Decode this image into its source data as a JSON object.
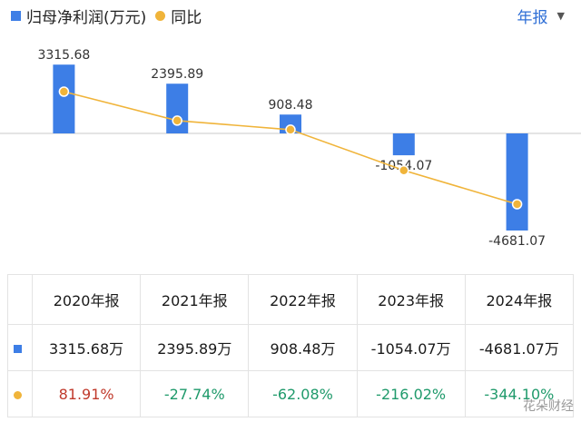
{
  "legend": {
    "profit": "归母净利润(万元)",
    "yoy": "同比"
  },
  "period_selector": {
    "label": "年报"
  },
  "colors": {
    "bar": "#3d7ee6",
    "line": "#f0b43a",
    "positive": "#c0392b",
    "negative": "#1f9a6b"
  },
  "chart_data": {
    "type": "bar",
    "categories": [
      "2020年报",
      "2021年报",
      "2022年报",
      "2023年报",
      "2024年报"
    ],
    "series": [
      {
        "name": "归母净利润(万元)",
        "type": "bar",
        "values": [
          3315.68,
          2395.89,
          908.48,
          -1054.07,
          -4681.07
        ],
        "data_labels": [
          "3315.68",
          "2395.89",
          "908.48",
          "-1054.07",
          "-4681.07"
        ]
      },
      {
        "name": "同比",
        "type": "line",
        "values": [
          81.91,
          -27.74,
          -62.08,
          -216.02,
          -344.1
        ]
      }
    ]
  },
  "table": {
    "headers": [
      "2020年报",
      "2021年报",
      "2022年报",
      "2023年报",
      "2024年报"
    ],
    "profit_row": [
      "3315.68万",
      "2395.89万",
      "908.48万",
      "-1054.07万",
      "-4681.07万"
    ],
    "yoy_row": [
      "81.91%",
      "-27.74%",
      "-62.08%",
      "-216.02%",
      "-344.10%"
    ]
  },
  "watermark": "花朵财经"
}
